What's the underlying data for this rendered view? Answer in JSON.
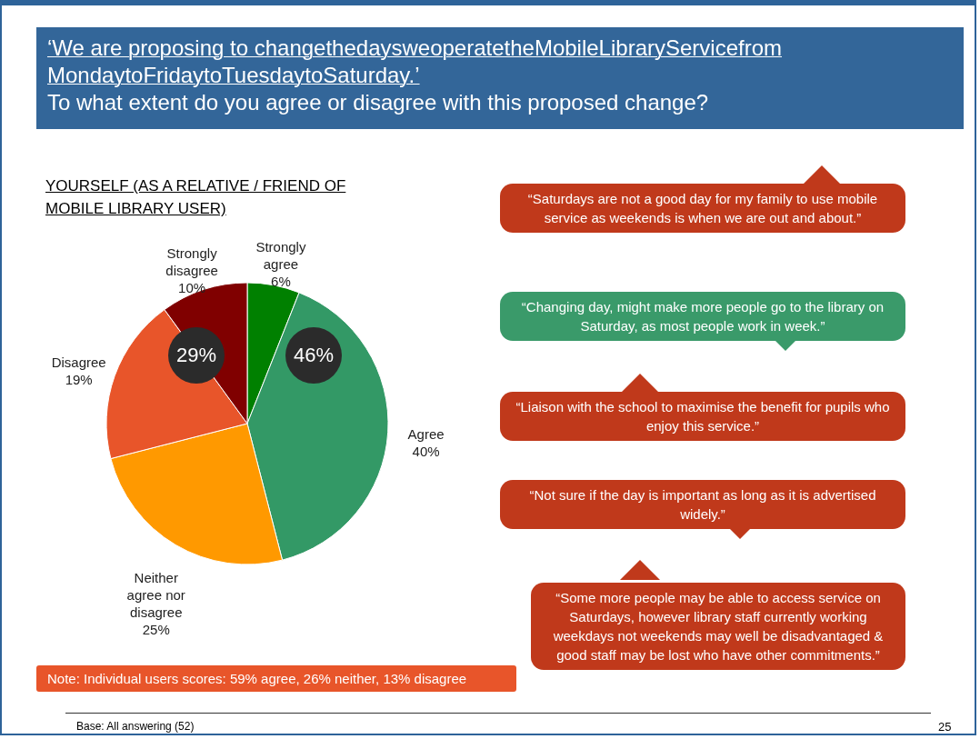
{
  "chart_data": {
    "type": "pie",
    "title": "‘We are proposing to changethedaysweoperatetheMobileLibraryServicefrom MondaytoFridaytoTuesdaytoSaturday.’",
    "subtitle": "To what extent do you agree or disagree with this proposed change?",
    "categories": [
      "Strongly agree",
      "Agree",
      "Neither agree nor disagree",
      "Disagree",
      "Strongly disagree"
    ],
    "values": [
      6,
      40,
      25,
      19,
      10
    ],
    "value_labels": [
      "6%",
      "40%",
      "25%",
      "19%",
      "10%"
    ],
    "colors": [
      "#008000",
      "#339966",
      "#ff9900",
      "#e8552a",
      "#800000"
    ],
    "annotations": [
      "YOURSELF (AS A RELATIVE / FRIEND OF MOBILE LIBRARY USER)",
      "“Saturdays are not a good day for my family to use mobile  service as weekends is when we are out and about.”",
      "“Changing day, might make more people go to the library on Saturday, as most people work in week.”",
      "“Liaison with the school to maximise the benefit for pupils who enjoy this service.”",
      "“Not sure if the day is important as long as it is advertised widely.”",
      "“Some more people may be able to access service on Saturdays, however library staff currently working weekdays not weekends may well be disadvantaged & good staff may be lost who have other commitments.”",
      "Note: Individual  users scores: 59% agree, 26% neither, 13% disagree",
      "Base: All answering (52)",
      "25",
      "29%",
      "46%"
    ]
  }
}
